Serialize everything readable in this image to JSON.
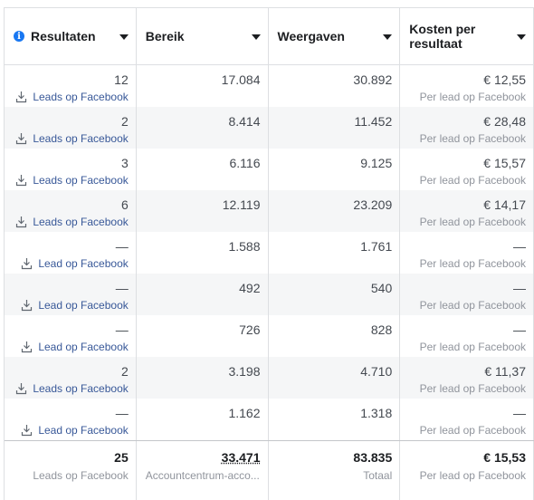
{
  "columns": [
    {
      "label": "Resultaten",
      "has_info_icon": true
    },
    {
      "label": "Bereik"
    },
    {
      "label": "Weergaven"
    },
    {
      "label": "Kosten per resultaat"
    }
  ],
  "rows": [
    {
      "results": "12",
      "results_type": "Leads op Facebook",
      "reach": "17.084",
      "impressions": "30.892",
      "cost": "€ 12,55",
      "cost_type": "Per lead op Facebook"
    },
    {
      "results": "2",
      "results_type": "Leads op Facebook",
      "reach": "8.414",
      "impressions": "11.452",
      "cost": "€ 28,48",
      "cost_type": "Per lead op Facebook"
    },
    {
      "results": "3",
      "results_type": "Leads op Facebook",
      "reach": "6.116",
      "impressions": "9.125",
      "cost": "€ 15,57",
      "cost_type": "Per lead op Facebook"
    },
    {
      "results": "6",
      "results_type": "Leads op Facebook",
      "reach": "12.119",
      "impressions": "23.209",
      "cost": "€ 14,17",
      "cost_type": "Per lead op Facebook"
    },
    {
      "results": "—",
      "results_type": "Lead op Facebook",
      "reach": "1.588",
      "impressions": "1.761",
      "cost": "—",
      "cost_type": "Per lead op Facebook"
    },
    {
      "results": "—",
      "results_type": "Lead op Facebook",
      "reach": "492",
      "impressions": "540",
      "cost": "—",
      "cost_type": "Per lead op Facebook"
    },
    {
      "results": "—",
      "results_type": "Lead op Facebook",
      "reach": "726",
      "impressions": "828",
      "cost": "—",
      "cost_type": "Per lead op Facebook"
    },
    {
      "results": "2",
      "results_type": "Leads op Facebook",
      "reach": "3.198",
      "impressions": "4.710",
      "cost": "€ 11,37",
      "cost_type": "Per lead op Facebook"
    },
    {
      "results": "—",
      "results_type": "Lead op Facebook",
      "reach": "1.162",
      "impressions": "1.318",
      "cost": "—",
      "cost_type": "Per lead op Facebook"
    }
  ],
  "totals": {
    "results": "25",
    "results_label": "Leads op Facebook",
    "reach": "33.471",
    "reach_label": "Accountcentrum-acco...",
    "impressions": "83.835",
    "impressions_label": "Totaal",
    "cost": "€ 15,53",
    "cost_label": "Per lead op Facebook"
  },
  "icons": {
    "info": "info-icon",
    "sort": "caret-down-icon",
    "result_link": "download-arrow-icon"
  },
  "colors": {
    "link": "#385898",
    "info": "#1877f2",
    "row_alt": "#f5f6f7",
    "border": "#dddfe2"
  }
}
